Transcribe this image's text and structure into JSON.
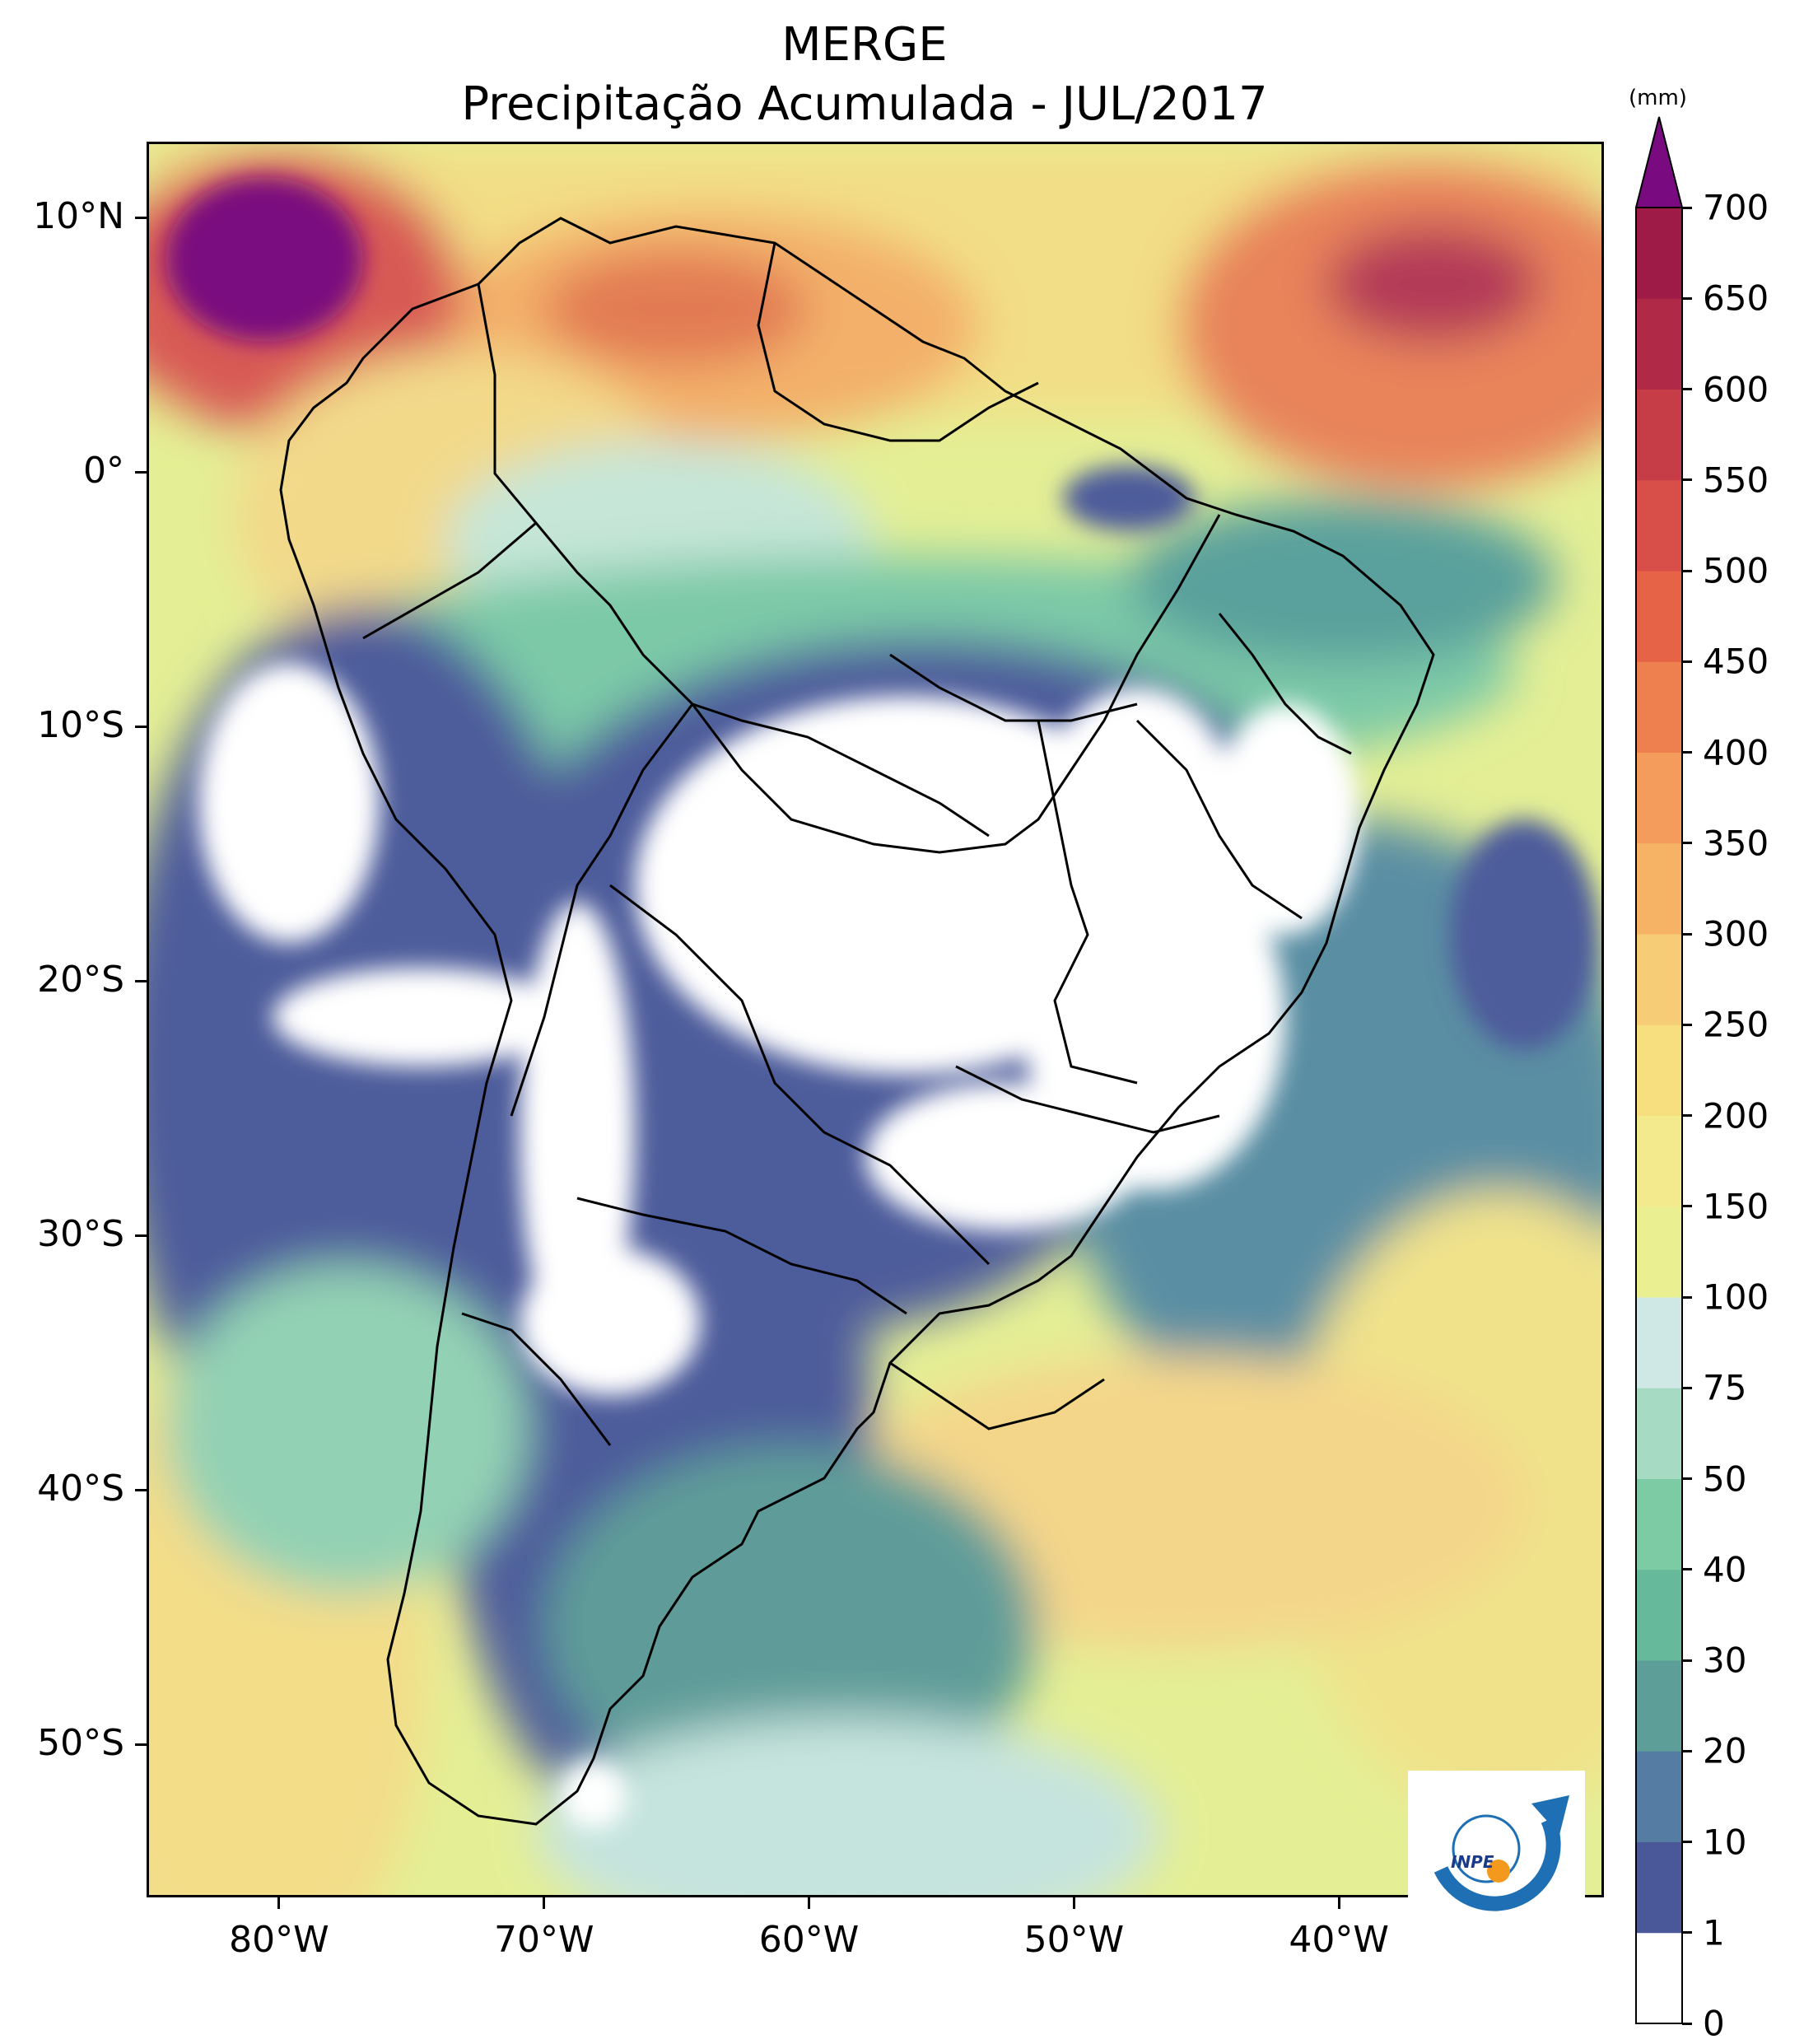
{
  "title": {
    "line1": "MERGE",
    "line2": "Precipitação Acumulada - JUL/2017"
  },
  "map": {
    "lon_range": [
      -85,
      -30
    ],
    "lat_range": [
      -56,
      13
    ],
    "lat_labels": [
      "10°N",
      "0°",
      "10°S",
      "20°S",
      "30°S",
      "40°S",
      "50°S"
    ],
    "lat_values": [
      10,
      0,
      -10,
      -20,
      -30,
      -40,
      -50
    ],
    "lon_labels": [
      "80°W",
      "70°W",
      "60°W",
      "50°W",
      "40°W"
    ],
    "lon_values": [
      -80,
      -70,
      -60,
      -50,
      -40
    ]
  },
  "colorbar": {
    "unit": "(mm)",
    "levels": [
      "0",
      "1",
      "10",
      "20",
      "30",
      "40",
      "50",
      "75",
      "100",
      "150",
      "200",
      "250",
      "300",
      "350",
      "400",
      "450",
      "500",
      "550",
      "600",
      "650",
      "700"
    ],
    "colors": [
      "#ffffff",
      "#4a5899",
      "#557ca3",
      "#5d9e98",
      "#67b99b",
      "#7dcba4",
      "#a6dac2",
      "#cfe8e5",
      "#eaef91",
      "#f2ea8c",
      "#f7df7f",
      "#f6cc76",
      "#f6b366",
      "#f39c5c",
      "#ee7f4e",
      "#e76348",
      "#d84e48",
      "#c63d48",
      "#b02a48",
      "#9e1a47"
    ],
    "extend_color": "#7a0a7f"
  },
  "logo": {
    "text": "INPE"
  }
}
